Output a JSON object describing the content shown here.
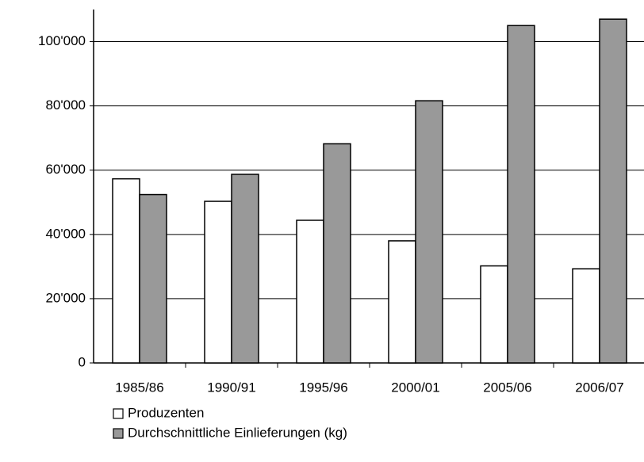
{
  "chart_data": {
    "type": "bar",
    "categories": [
      "1985/86",
      "1990/91",
      "1995/96",
      "2000/01",
      "2005/06",
      "2006/07"
    ],
    "series": [
      {
        "name": "Produzenten",
        "color": "#ffffff",
        "values": [
          57300,
          50300,
          44400,
          38000,
          30200,
          29300
        ]
      },
      {
        "name": "Durchschnittliche Einlieferungen (kg)",
        "color": "#999999",
        "values": [
          52400,
          58700,
          68200,
          81600,
          105000,
          107000
        ]
      }
    ],
    "ylim": [
      0,
      110000
    ],
    "yticks": [
      0,
      {
        "value": 20000,
        "label": "20'000"
      },
      {
        "value": 40000,
        "label": "40'000"
      },
      {
        "value": 60000,
        "label": "60'000"
      },
      {
        "value": 80000,
        "label": "80'000"
      },
      {
        "value": 100000,
        "label": "100'000"
      }
    ],
    "grid": true
  }
}
